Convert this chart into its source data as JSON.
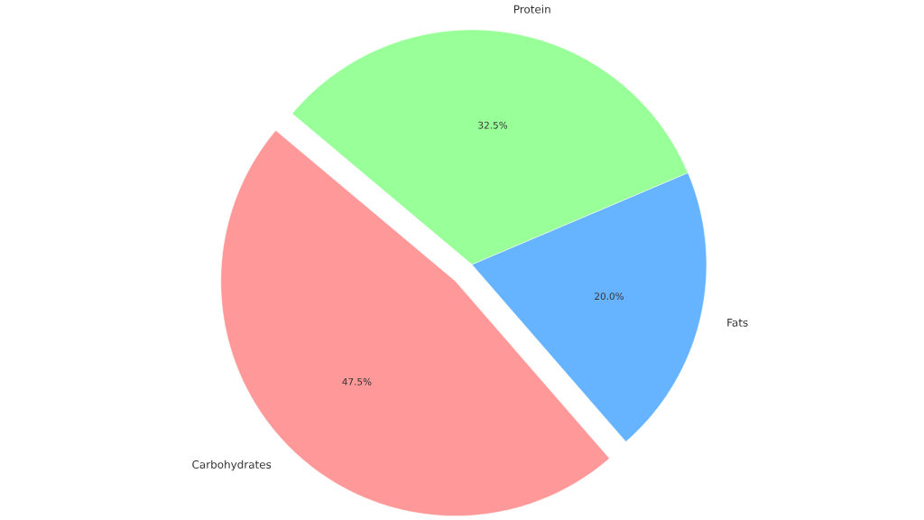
{
  "chart_data": {
    "type": "pie",
    "categories": [
      "Carbohydrates",
      "Fats",
      "Protein"
    ],
    "values": [
      47.5,
      20.0,
      32.5
    ],
    "colors": [
      "#ff9999",
      "#66b3ff",
      "#99ff99"
    ],
    "value_labels": [
      "47.5%",
      "20.0%",
      "32.5%"
    ]
  }
}
